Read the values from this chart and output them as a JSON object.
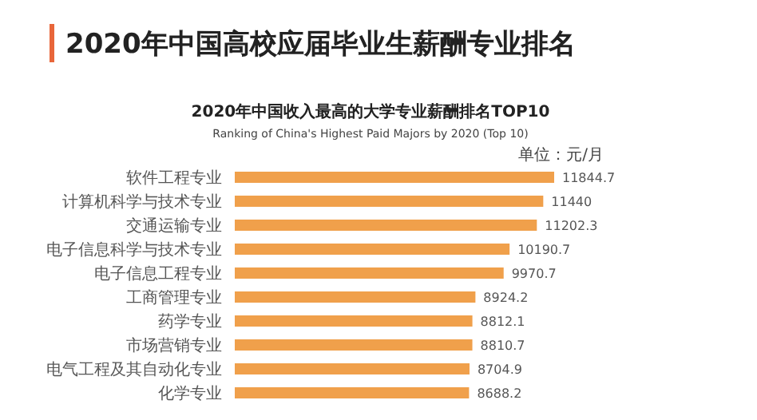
{
  "chart_data": {
    "type": "bar",
    "orientation": "horizontal",
    "title": "2020年中国高校应届毕业生薪酬专业排名",
    "subtitle": "2020年中国收入最高的大学专业薪酬排名TOP10",
    "annotations": [
      "Ranking of China's Highest Paid Majors by 2020 (Top 10)",
      "单位：元/月"
    ],
    "categories": [
      "软件工程专业",
      "计算机科学与技术专业",
      "交通运输专业",
      "电子信息科学与技术专业",
      "电子信息工程专业",
      "工商管理专业",
      "药学专业",
      "市场营销专业",
      "电气工程及其自动化专业",
      "化学专业"
    ],
    "values": [
      11844.7,
      11440,
      11202.3,
      10190.7,
      9970.7,
      8924.2,
      8812.1,
      8810.7,
      8704.9,
      8688.2
    ],
    "color": "#f0a04b",
    "data_labels": true,
    "grid": false
  }
}
